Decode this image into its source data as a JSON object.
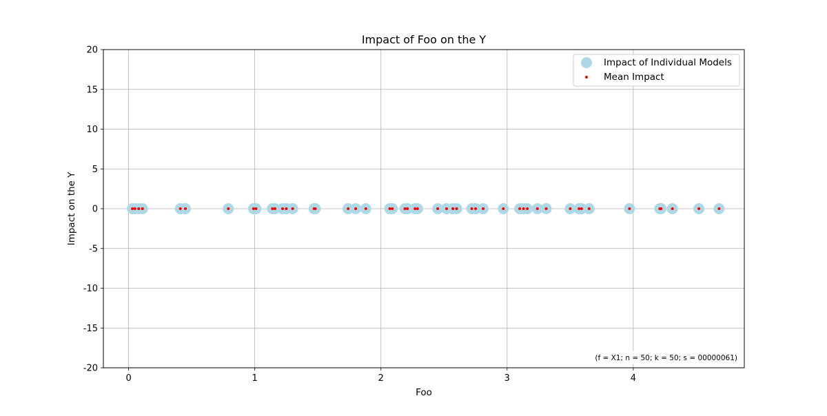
{
  "chart_data": {
    "type": "scatter",
    "title": "Impact of Foo on the Y",
    "xlabel": "Foo",
    "ylabel": "Impact on the Y",
    "xlim": [
      -0.2,
      4.88
    ],
    "ylim": [
      -20,
      20
    ],
    "xticks": [
      0,
      1,
      2,
      3,
      4
    ],
    "yticks": [
      -20,
      -15,
      -10,
      -5,
      0,
      5,
      10,
      15,
      20
    ],
    "grid": true,
    "legend_position": "top-right",
    "annotation": "(f = X1; n = 50; k = 50; s = 00000061)",
    "series": [
      {
        "name": "Impact of Individual Models",
        "marker": "circle-large",
        "color": "#add8e6",
        "x": [
          0.03,
          0.05,
          0.08,
          0.11,
          0.41,
          0.45,
          0.79,
          0.99,
          1.01,
          1.14,
          1.16,
          1.22,
          1.25,
          1.3,
          1.47,
          1.48,
          1.74,
          1.8,
          1.88,
          2.07,
          2.09,
          2.19,
          2.21,
          2.27,
          2.29,
          2.45,
          2.52,
          2.57,
          2.6,
          2.72,
          2.75,
          2.81,
          2.97,
          3.1,
          3.13,
          3.16,
          3.24,
          3.31,
          3.5,
          3.57,
          3.59,
          3.65,
          3.97,
          4.21,
          4.22,
          4.31,
          4.52,
          4.68
        ],
        "y": [
          0,
          0,
          0,
          0,
          0,
          0,
          0,
          0,
          0,
          0,
          0,
          0,
          0,
          0,
          0,
          0,
          0,
          0,
          0,
          0,
          0,
          0,
          0,
          0,
          0,
          0,
          0,
          0,
          0,
          0,
          0,
          0,
          0,
          0,
          0,
          0,
          0,
          0,
          0,
          0,
          0,
          0,
          0,
          0,
          0,
          0,
          0,
          0
        ]
      },
      {
        "name": "Mean Impact",
        "marker": "dot-small",
        "color": "#ff0000",
        "x": [
          0.03,
          0.05,
          0.08,
          0.11,
          0.41,
          0.45,
          0.79,
          0.99,
          1.01,
          1.14,
          1.16,
          1.22,
          1.25,
          1.3,
          1.47,
          1.48,
          1.74,
          1.8,
          1.88,
          2.07,
          2.09,
          2.19,
          2.21,
          2.27,
          2.29,
          2.45,
          2.52,
          2.57,
          2.6,
          2.72,
          2.75,
          2.81,
          2.97,
          3.1,
          3.13,
          3.16,
          3.24,
          3.31,
          3.5,
          3.57,
          3.59,
          3.65,
          3.97,
          4.21,
          4.22,
          4.31,
          4.52,
          4.68
        ],
        "y": [
          0,
          0,
          0,
          0,
          0,
          0,
          0,
          0,
          0,
          0,
          0,
          0,
          0,
          0,
          0,
          0,
          0,
          0,
          0,
          0,
          0,
          0,
          0,
          0,
          0,
          0,
          0,
          0,
          0,
          0,
          0,
          0,
          0,
          0,
          0,
          0,
          0,
          0,
          0,
          0,
          0,
          0,
          0,
          0,
          0,
          0,
          0,
          0
        ]
      }
    ]
  }
}
